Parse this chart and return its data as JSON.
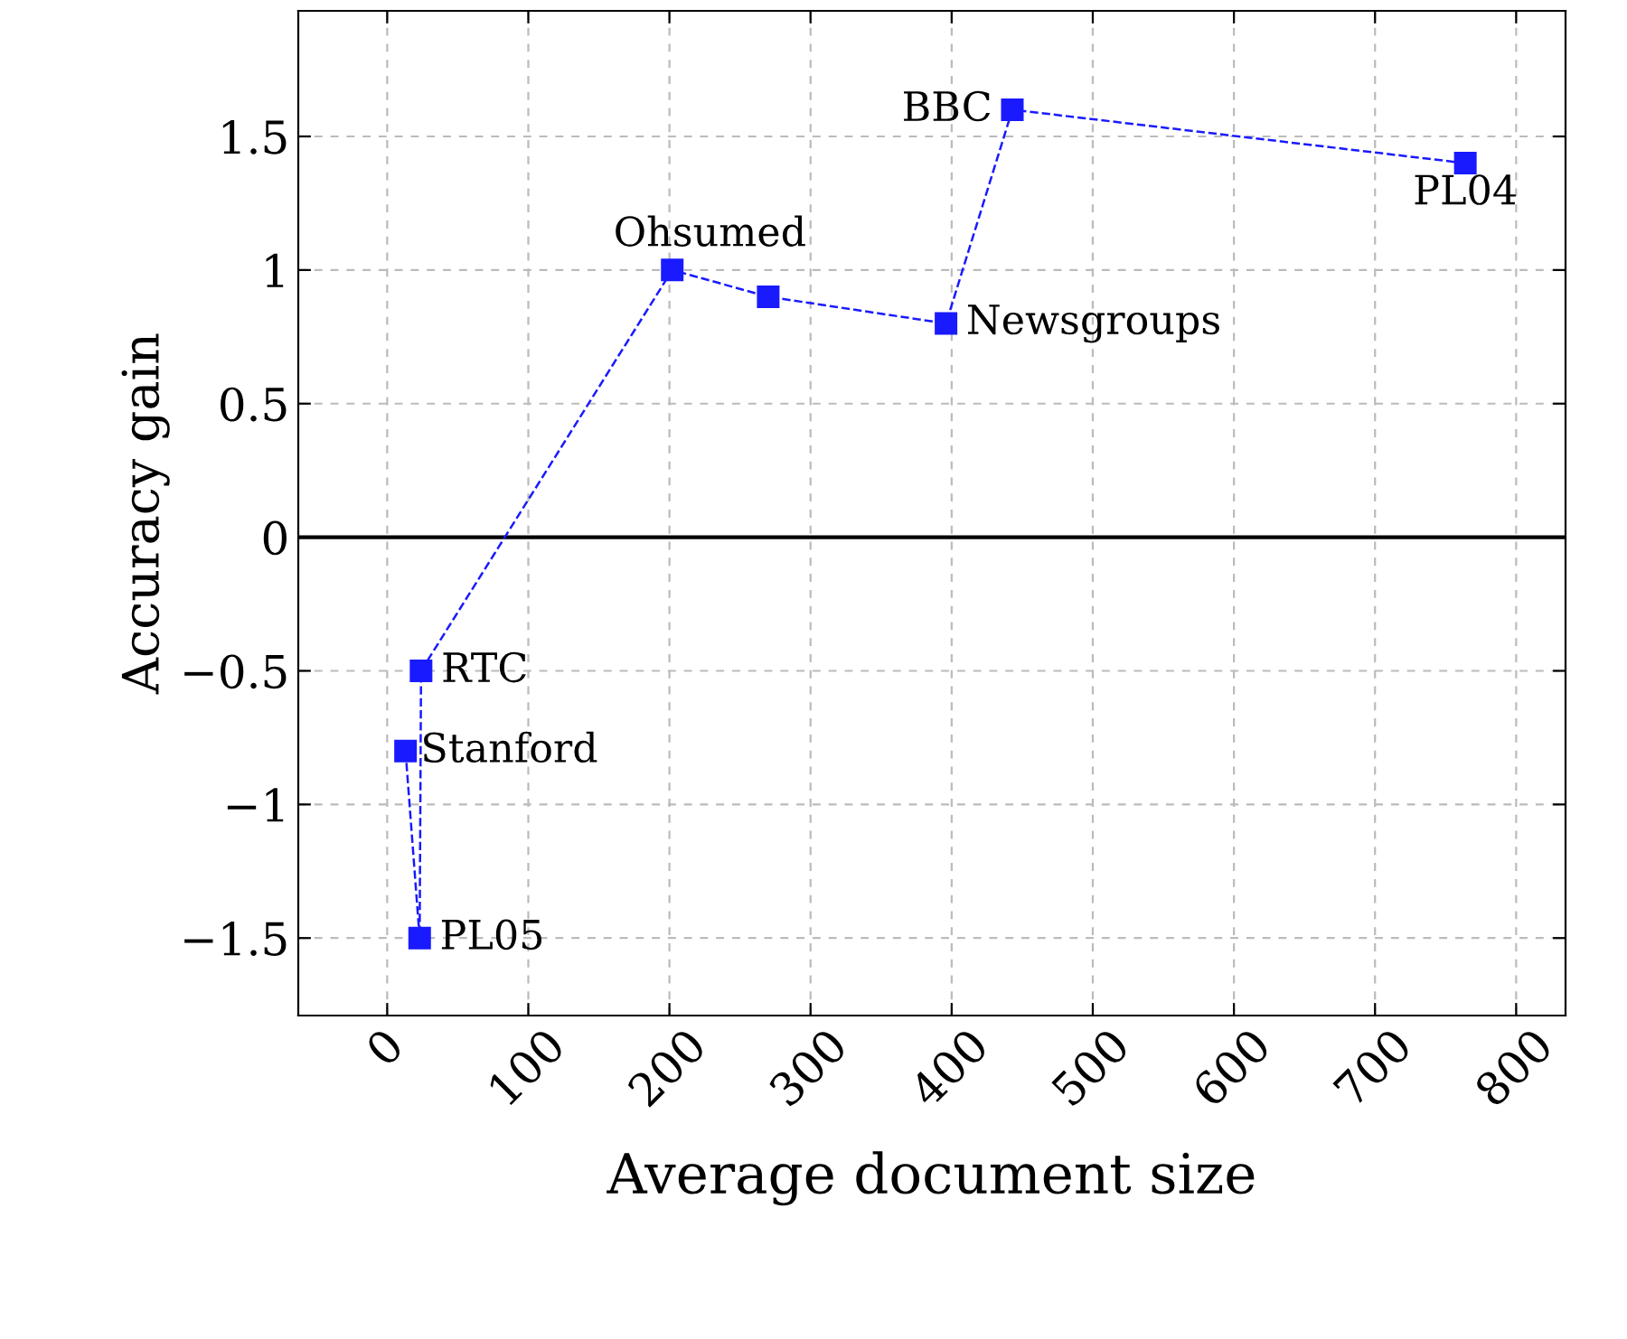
{
  "chart_data": {
    "type": "line",
    "xlabel": "Average document size",
    "ylabel": "Accuracy gain",
    "x": [
      13,
      23,
      24,
      202,
      270,
      396,
      443,
      764
    ],
    "series": [
      {
        "color": "#1a1aff",
        "values": [
          -0.8,
          -1.5,
          -0.5,
          1.0,
          0.9,
          0.8,
          1.6,
          1.4
        ]
      }
    ],
    "marker": "square",
    "line_style": "dashed",
    "grid": true,
    "xlim": [
      -63,
      835
    ],
    "ylim": [
      -1.79,
      1.97
    ],
    "xticks": [
      0,
      100,
      200,
      300,
      400,
      500,
      600,
      700,
      800
    ],
    "yticks": [
      -1.5,
      -1,
      -0.5,
      0,
      0.5,
      1,
      1.5
    ],
    "ref_lines": [
      {
        "axis": "y",
        "value": 0,
        "color": "#000000",
        "line_style": "solid"
      }
    ],
    "annotations": [
      {
        "text": "Stanford",
        "x": 13,
        "y": -0.8
      },
      {
        "text": "PL05",
        "x": 23,
        "y": -1.5
      },
      {
        "text": "RTC",
        "x": 24,
        "y": -0.5
      },
      {
        "text": "Ohsumed",
        "x": 202,
        "y": 1.0
      },
      {
        "text": "Newsgroups",
        "x": 396,
        "y": 0.8
      },
      {
        "text": "BBC",
        "x": 443,
        "y": 1.6
      },
      {
        "text": "PL04",
        "x": 764,
        "y": 1.4
      }
    ]
  }
}
